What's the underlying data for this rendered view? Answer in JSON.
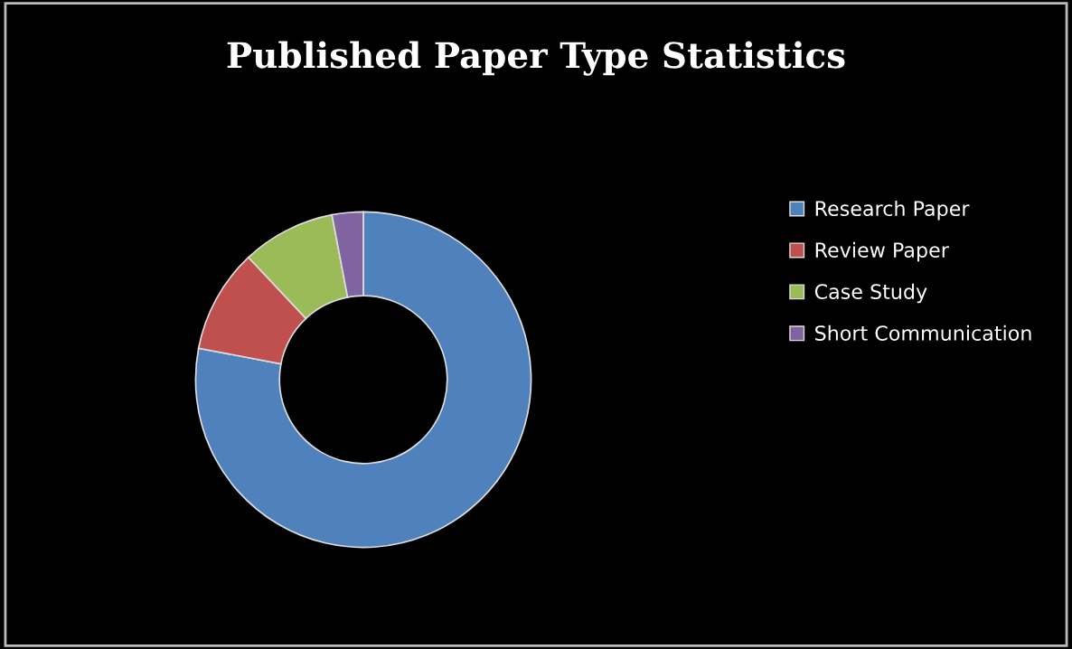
{
  "chart_data": {
    "type": "donut",
    "title": "Published Paper Type Statistics",
    "categories": [
      "Research Paper",
      "Review Paper",
      "Case Study",
      "Short Communication"
    ],
    "values": [
      78,
      10,
      9,
      3
    ],
    "colors": [
      "#4f81bd",
      "#c0504d",
      "#9bbb59",
      "#8064a2"
    ],
    "legend": "right"
  }
}
